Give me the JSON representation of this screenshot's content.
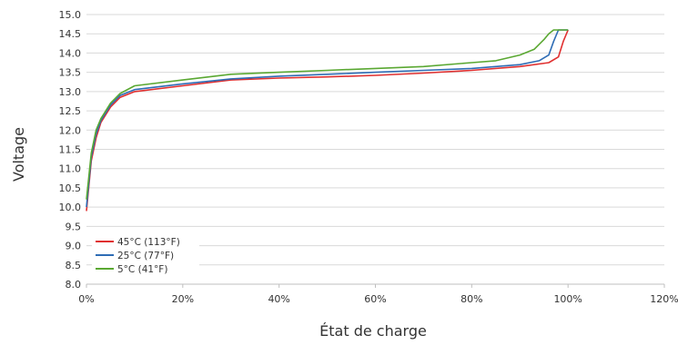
{
  "chart_data": {
    "type": "line",
    "title": "",
    "xlabel": "État de charge",
    "ylabel": "Voltage",
    "xlim": [
      0,
      120
    ],
    "ylim": [
      8.0,
      15.0
    ],
    "grid": "horizontal",
    "legend_position": "bottom-left",
    "x_tick_labels": [
      "0%",
      "20%",
      "40%",
      "60%",
      "80%",
      "100%",
      "120%"
    ],
    "y_tick_labels": [
      "15.0",
      "14.5",
      "14.0",
      "13.5",
      "13.0",
      "12.5",
      "12.0",
      "11.5",
      "11.0",
      "10.5",
      "10.0",
      "9.5",
      "9.0",
      "8.5",
      "8.0"
    ],
    "series": [
      {
        "name": "45°C (113°F)",
        "color": "#e03030",
        "x": [
          0,
          1,
          2,
          3,
          5,
          7,
          10,
          20,
          30,
          40,
          50,
          60,
          70,
          80,
          90,
          96,
          98,
          99,
          100
        ],
        "y": [
          9.9,
          11.2,
          11.8,
          12.2,
          12.6,
          12.85,
          13.0,
          13.15,
          13.3,
          13.35,
          13.38,
          13.42,
          13.48,
          13.55,
          13.65,
          13.75,
          13.9,
          14.3,
          14.6
        ]
      },
      {
        "name": "25°C (77°F)",
        "color": "#2e6cb5",
        "x": [
          0,
          1,
          2,
          3,
          5,
          7,
          10,
          20,
          30,
          40,
          50,
          60,
          70,
          80,
          90,
          94,
          96,
          97,
          98,
          100
        ],
        "y": [
          10.0,
          11.3,
          11.9,
          12.25,
          12.65,
          12.9,
          13.05,
          13.2,
          13.33,
          13.4,
          13.45,
          13.5,
          13.55,
          13.6,
          13.7,
          13.8,
          13.95,
          14.3,
          14.6,
          14.6
        ]
      },
      {
        "name": "5°C (41°F)",
        "color": "#5aa832",
        "x": [
          0,
          1,
          2,
          3,
          5,
          7,
          10,
          20,
          30,
          40,
          50,
          60,
          70,
          80,
          85,
          90,
          93,
          95,
          96,
          97,
          100
        ],
        "y": [
          10.2,
          11.4,
          12.0,
          12.3,
          12.7,
          12.95,
          13.15,
          13.3,
          13.45,
          13.5,
          13.55,
          13.6,
          13.65,
          13.75,
          13.8,
          13.95,
          14.1,
          14.35,
          14.5,
          14.6,
          14.6
        ]
      }
    ]
  }
}
